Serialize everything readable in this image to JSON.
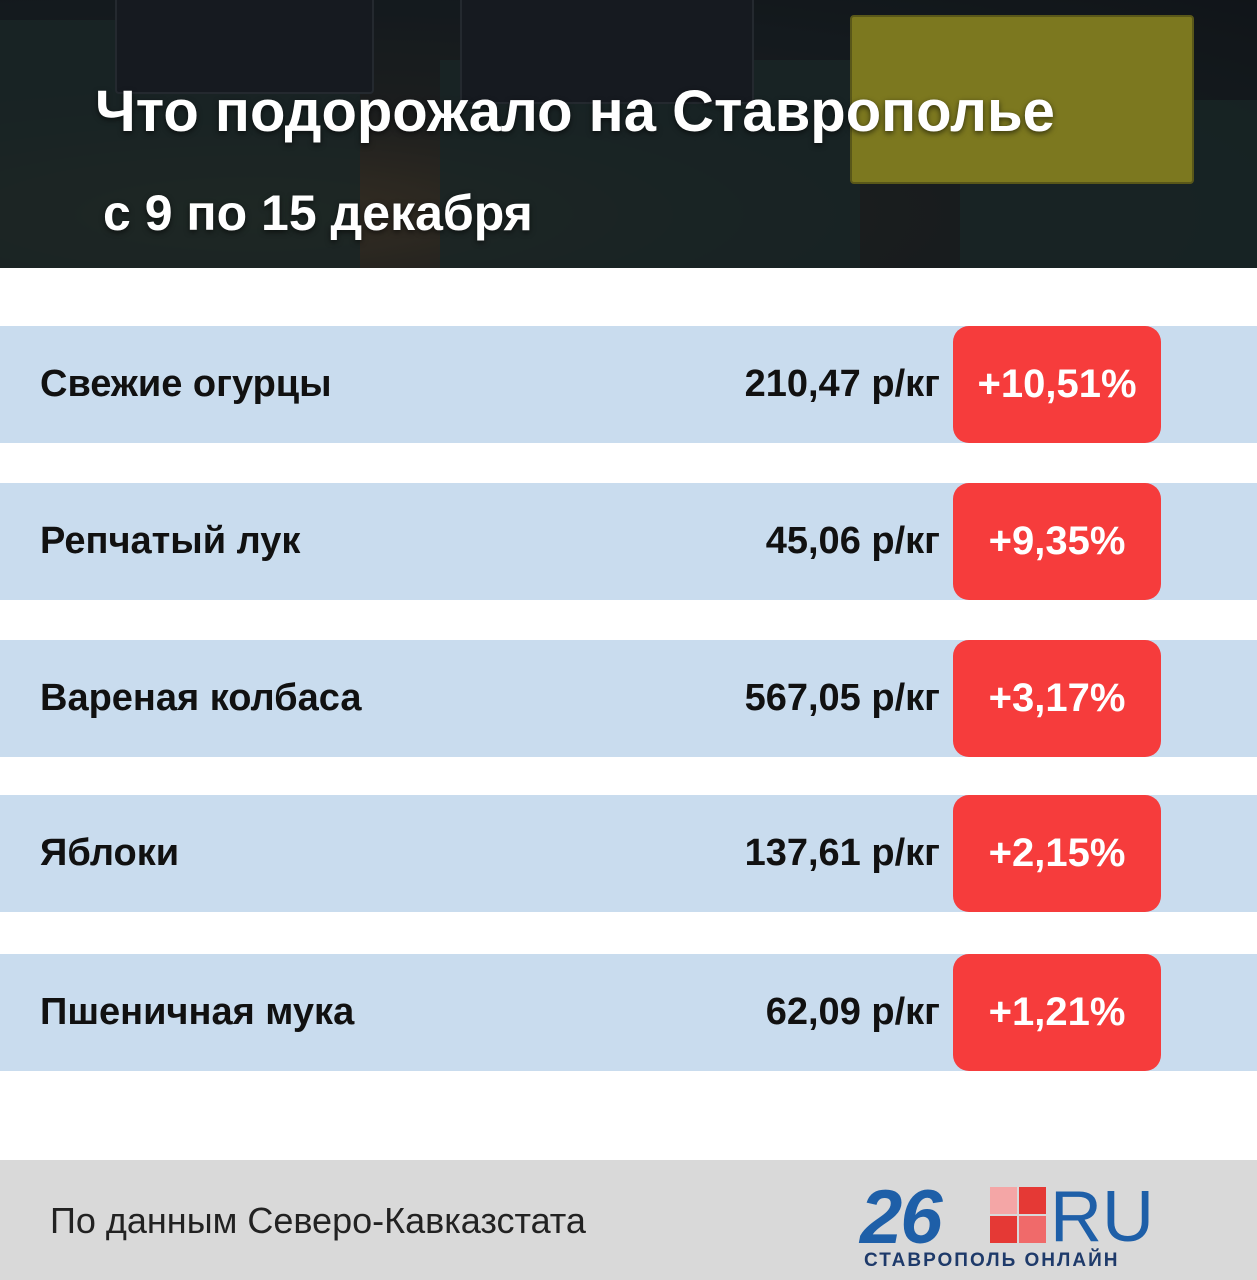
{
  "header": {
    "title": "Что подорожало на Ставрополье",
    "subtitle": "с 9 по 15 декабря"
  },
  "table": {
    "rows": [
      {
        "name": "Свежие огурцы",
        "price": "210,47 р/кг",
        "change": "+10,51%"
      },
      {
        "name": "Репчатый лук",
        "price": "45,06 р/кг",
        "change": "+9,35%"
      },
      {
        "name": "Вареная колбаса",
        "price": "567,05 р/кг",
        "change": "+3,17%"
      },
      {
        "name": "Яблоки",
        "price": "137,61 р/кг",
        "change": "+2,15%"
      },
      {
        "name": "Пшеничная мука",
        "price": "62,09 р/кг",
        "change": "+1,21%"
      }
    ]
  },
  "footer": {
    "source": "По данным Северо-Кавказстата",
    "logo": "26",
    "logo_suffix": "RU",
    "logo_caption": "СТАВРОПОЛЬ ОНЛАЙН"
  }
}
